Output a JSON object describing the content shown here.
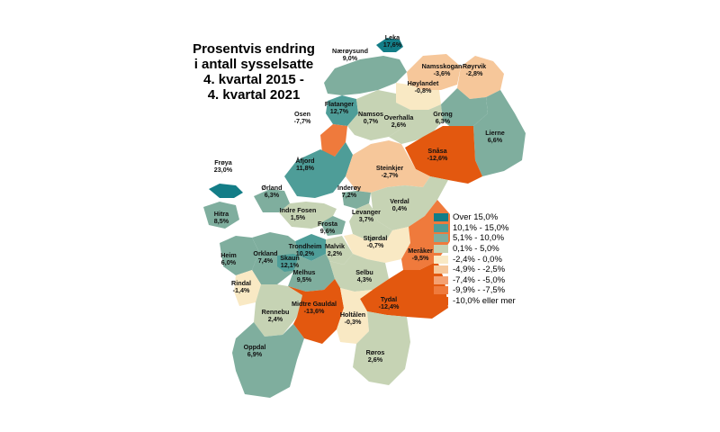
{
  "title": [
    "Prosentvis endring",
    "i antall sysselsatte",
    "4. kvartal 2015 -",
    "4. kvartal 2021"
  ],
  "legend": [
    {
      "label": "Over 15,0%",
      "color": "#137d87"
    },
    {
      "label": "10,1% - 15,0%",
      "color": "#4e9d98"
    },
    {
      "label": "5,1% - 10,0%",
      "color": "#7fae9e"
    },
    {
      "label": "0,1% - 5,0%",
      "color": "#c6d3b4"
    },
    {
      "label": "-2,4% - 0,0%",
      "color": "#f9e9c4"
    },
    {
      "label": "-4,9% - -2,5%",
      "color": "#f6c79a"
    },
    {
      "label": "-7,4% - -5,0%",
      "color": "#f4a071"
    },
    {
      "label": "-9,9% - -7,5%",
      "color": "#ef7a3c"
    },
    {
      "label": "-10,0% eller mer",
      "color": "#e3580f"
    }
  ],
  "municipalities": [
    {
      "name": "Leka",
      "value": "17,6%"
    },
    {
      "name": "Nærøysund",
      "value": "9,0%"
    },
    {
      "name": "Namsskogan",
      "value": "-3,6%"
    },
    {
      "name": "Røyrvik",
      "value": "-2,8%"
    },
    {
      "name": "Høylandet",
      "value": "-0,8%"
    },
    {
      "name": "Flatanger",
      "value": "12,7%"
    },
    {
      "name": "Osen",
      "value": "-7,7%"
    },
    {
      "name": "Namsos",
      "value": "0,7%"
    },
    {
      "name": "Overhalla",
      "value": "2,6%"
    },
    {
      "name": "Grong",
      "value": "6,3%"
    },
    {
      "name": "Lierne",
      "value": "6,6%"
    },
    {
      "name": "Snåsa",
      "value": "-12,6%"
    },
    {
      "name": "Frøya",
      "value": "23,0%"
    },
    {
      "name": "Åfjord",
      "value": "11,8%"
    },
    {
      "name": "Steinkjer",
      "value": "-2,7%"
    },
    {
      "name": "Ørland",
      "value": "6,3%"
    },
    {
      "name": "Inderøy",
      "value": "7,2%"
    },
    {
      "name": "Verdal",
      "value": "0,4%"
    },
    {
      "name": "Indre Fosen",
      "value": "1,5%"
    },
    {
      "name": "Levanger",
      "value": "3,7%"
    },
    {
      "name": "Hitra",
      "value": "8,5%"
    },
    {
      "name": "Frosta",
      "value": "9,6%"
    },
    {
      "name": "Stjørdal",
      "value": "-0,7%"
    },
    {
      "name": "Trondheim",
      "value": "10,2%"
    },
    {
      "name": "Malvik",
      "value": "2,2%"
    },
    {
      "name": "Heim",
      "value": "6,0%"
    },
    {
      "name": "Orkland",
      "value": "7,4%"
    },
    {
      "name": "Skaun",
      "value": "12,1%"
    },
    {
      "name": "Meråker",
      "value": "-9,5%"
    },
    {
      "name": "Melhus",
      "value": "9,5%"
    },
    {
      "name": "Selbu",
      "value": "4,3%"
    },
    {
      "name": "Rindal",
      "value": "-1,4%"
    },
    {
      "name": "Tydal",
      "value": "-12,4%"
    },
    {
      "name": "Rennebu",
      "value": "2,4%"
    },
    {
      "name": "Midtre Gauldal",
      "value": "-13,6%"
    },
    {
      "name": "Holtålen",
      "value": "-0,3%"
    },
    {
      "name": "Oppdal",
      "value": "6,9%"
    },
    {
      "name": "Røros",
      "value": "2,6%"
    }
  ]
}
